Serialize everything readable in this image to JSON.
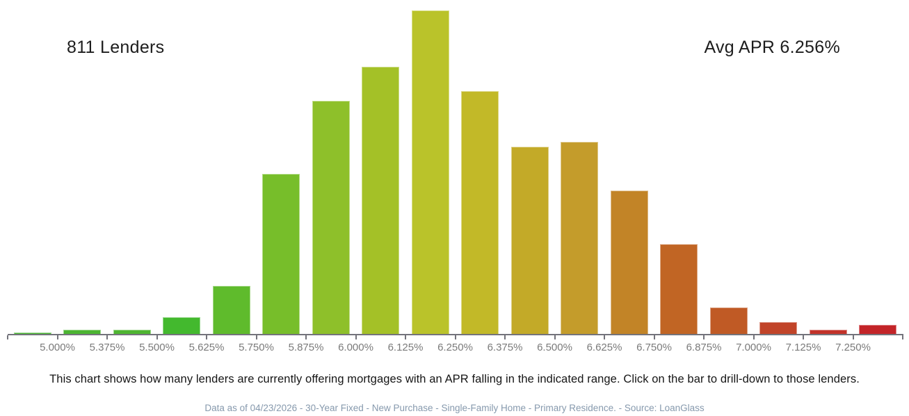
{
  "header": {
    "lender_count": "811 Lenders",
    "avg_apr": "Avg APR 6.256%"
  },
  "chart_data": {
    "type": "bar",
    "title": "",
    "xlabel": "",
    "ylabel": "",
    "total_lenders": 811,
    "avg_apr_pct": 6.256,
    "boundary_tick_labels": [
      "5.000%",
      "5.375%",
      "5.500%",
      "5.625%",
      "5.750%",
      "5.875%",
      "6.000%",
      "6.125%",
      "6.250%",
      "6.375%",
      "6.500%",
      "6.625%",
      "6.750%",
      "6.875%",
      "7.000%",
      "7.125%",
      "7.250%"
    ],
    "values": [
      1,
      2,
      2,
      7,
      20,
      66,
      96,
      110,
      133,
      100,
      77,
      79,
      59,
      37,
      11,
      5,
      2,
      4
    ],
    "values_estimated_from_bar_heights": true,
    "bar_colors": [
      "#4ab433",
      "#4cb532",
      "#4eb531",
      "#43b92e",
      "#5fbb2c",
      "#77be2a",
      "#8ec02a",
      "#a4c127",
      "#bac32a",
      "#c2b928",
      "#c3aa28",
      "#c49c2b",
      "#c28427",
      "#c16524",
      "#c05a25",
      "#c14429",
      "#c23229",
      "#c32428"
    ],
    "ylim": [
      0,
      140
    ],
    "grid": false,
    "legend": false,
    "y_axis_shown": false,
    "tick_labels_between_bars": true
  },
  "caption": "This chart shows how many lenders are currently offering mortgages with an APR falling in the indicated range. Click on the bar to drill-down to those lenders.",
  "footnote": "Data as of 04/23/2026 - 30-Year Fixed - New Purchase - Single-Family Home - Primary Residence. - Source: LoanGlass",
  "colors": {
    "axis": "#73737b",
    "tick_label_text": "#7a7a7a",
    "caption_text": "#151515",
    "footnote_text": "#8699ad",
    "background": "#ffffff"
  }
}
